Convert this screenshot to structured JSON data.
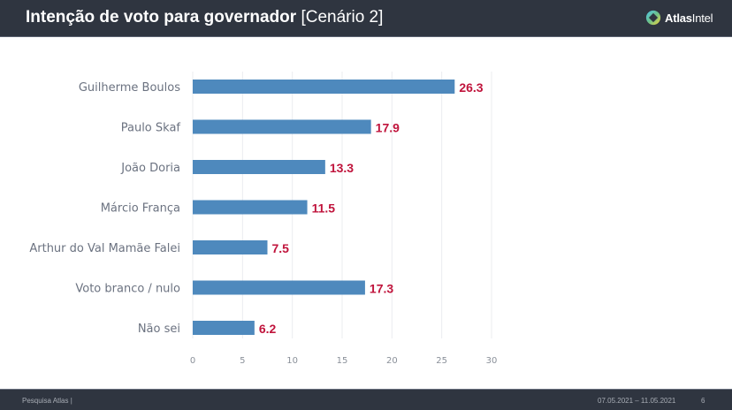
{
  "header": {
    "title_bold": "Intenção de voto para governador",
    "title_sub": "[Cenário 2]",
    "logo_text_bold": "Atlas",
    "logo_text_light": "Intel",
    "logo_icon": "atlasintel-logo-icon"
  },
  "colors": {
    "bar": "#4e89bd",
    "data_label": "#c0143c",
    "header_bg": "#2f3540",
    "gridline": "#ebecef"
  },
  "chart_data": {
    "type": "bar",
    "orientation": "horizontal",
    "title": "Intenção de voto para governador [Cenário 2]",
    "xlabel": "",
    "ylabel": "",
    "categories": [
      "Guilherme Boulos",
      "Paulo Skaf",
      "João Doria",
      "Márcio França",
      "Arthur do Val Mamãe Falei",
      "Voto branco / nulo",
      "Não sei"
    ],
    "values": [
      26.3,
      17.9,
      13.3,
      11.5,
      7.5,
      17.3,
      6.2
    ],
    "data_labels": [
      "26.3",
      "17.9",
      "13.3",
      "11.5",
      "7.5",
      "17.3",
      "6.2"
    ],
    "xlim": [
      0,
      30
    ],
    "xticks": [
      0,
      5,
      10,
      15,
      20,
      25,
      30
    ],
    "xtick_labels": [
      "0",
      "5",
      "10",
      "15",
      "20",
      "25",
      "30"
    ],
    "grid": "vertical",
    "legend": "none"
  },
  "footer": {
    "source": "Pesquisa Atlas  |",
    "date_range": "07.05.2021 – 11.05.2021",
    "page_number": "6"
  }
}
